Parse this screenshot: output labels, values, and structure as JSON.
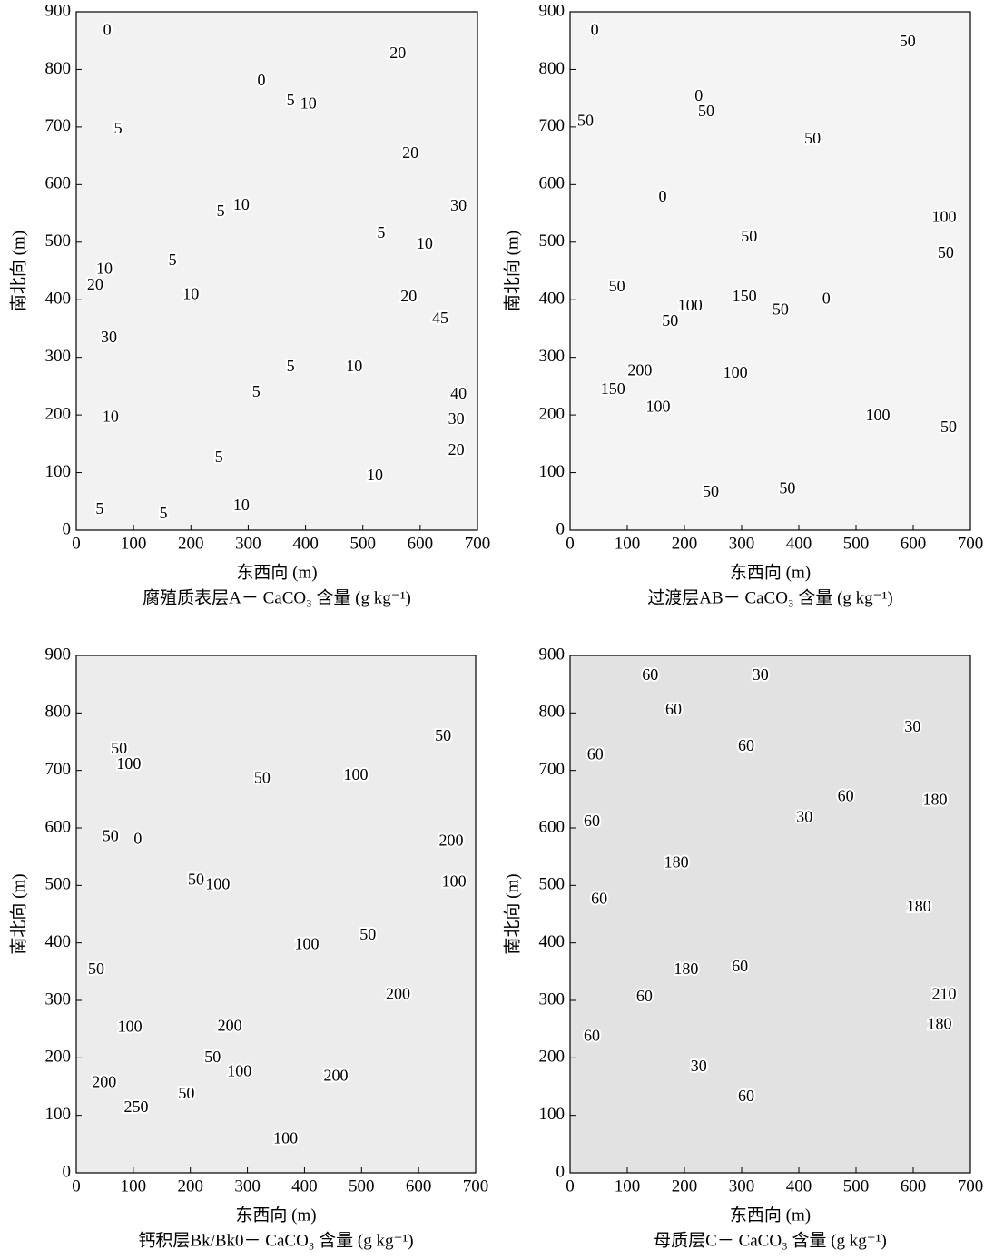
{
  "chart_data": [
    {
      "type": "contour",
      "xlabel": "东西向 (m)",
      "ylabel": "南北向 (m)",
      "caption": "腐殖质表层A－ CaCO₃ 含量 (g kg⁻¹)",
      "color": "#f2f2f2",
      "xlim": [
        0,
        700
      ],
      "ylim": [
        0,
        900
      ],
      "xticks": [
        0,
        100,
        200,
        300,
        400,
        500,
        600,
        700
      ],
      "yticks": [
        0,
        100,
        200,
        300,
        400,
        500,
        600,
        700,
        800,
        900
      ],
      "contour_labels": [
        {
          "x": 54,
          "y": 866,
          "value": 0
        },
        {
          "x": 323,
          "y": 779,
          "value": 0
        },
        {
          "x": 561,
          "y": 826,
          "value": 20
        },
        {
          "x": 73,
          "y": 695,
          "value": 5
        },
        {
          "x": 374,
          "y": 744,
          "value": 5
        },
        {
          "x": 405,
          "y": 739,
          "value": 10
        },
        {
          "x": 583,
          "y": 653,
          "value": 20
        },
        {
          "x": 667,
          "y": 561,
          "value": 30
        },
        {
          "x": 288,
          "y": 563,
          "value": 10
        },
        {
          "x": 252,
          "y": 552,
          "value": 5
        },
        {
          "x": 168,
          "y": 467,
          "value": 5
        },
        {
          "x": 200,
          "y": 408,
          "value": 10
        },
        {
          "x": 532,
          "y": 514,
          "value": 5
        },
        {
          "x": 608,
          "y": 495,
          "value": 10
        },
        {
          "x": 580,
          "y": 404,
          "value": 20
        },
        {
          "x": 635,
          "y": 366,
          "value": 45
        },
        {
          "x": 49,
          "y": 452,
          "value": 10
        },
        {
          "x": 33,
          "y": 424,
          "value": 20
        },
        {
          "x": 57,
          "y": 333,
          "value": 30
        },
        {
          "x": 374,
          "y": 282,
          "value": 5
        },
        {
          "x": 314,
          "y": 238,
          "value": 5
        },
        {
          "x": 485,
          "y": 282,
          "value": 10
        },
        {
          "x": 667,
          "y": 235,
          "value": 40
        },
        {
          "x": 663,
          "y": 191,
          "value": 30
        },
        {
          "x": 663,
          "y": 137,
          "value": 20
        },
        {
          "x": 60,
          "y": 195,
          "value": 10
        },
        {
          "x": 249,
          "y": 125,
          "value": 5
        },
        {
          "x": 521,
          "y": 93,
          "value": 10
        },
        {
          "x": 41,
          "y": 35,
          "value": 5
        },
        {
          "x": 152,
          "y": 27,
          "value": 5
        },
        {
          "x": 288,
          "y": 41,
          "value": 10
        }
      ]
    },
    {
      "type": "contour",
      "xlabel": "东西向 (m)",
      "ylabel": "南北向 (m)",
      "caption": "过渡层AB－ CaCO₃ 含量 (g kg⁻¹)",
      "color": "#f4f4f4",
      "xlim": [
        0,
        700
      ],
      "ylim": [
        0,
        900
      ],
      "xticks": [
        0,
        100,
        200,
        300,
        400,
        500,
        600,
        700
      ],
      "yticks": [
        0,
        100,
        200,
        300,
        400,
        500,
        600,
        700,
        800,
        900
      ],
      "contour_labels": [
        {
          "x": 43,
          "y": 866,
          "value": 0
        },
        {
          "x": 590,
          "y": 847,
          "value": 50
        },
        {
          "x": 225,
          "y": 752,
          "value": 0
        },
        {
          "x": 238,
          "y": 725,
          "value": 50
        },
        {
          "x": 27,
          "y": 709,
          "value": 50
        },
        {
          "x": 424,
          "y": 678,
          "value": 50
        },
        {
          "x": 162,
          "y": 577,
          "value": 0
        },
        {
          "x": 654,
          "y": 542,
          "value": 100
        },
        {
          "x": 313,
          "y": 508,
          "value": 50
        },
        {
          "x": 657,
          "y": 479,
          "value": 50
        },
        {
          "x": 82,
          "y": 421,
          "value": 50
        },
        {
          "x": 305,
          "y": 404,
          "value": 150
        },
        {
          "x": 448,
          "y": 400,
          "value": 0
        },
        {
          "x": 210,
          "y": 388,
          "value": 100
        },
        {
          "x": 175,
          "y": 361,
          "value": 50
        },
        {
          "x": 368,
          "y": 381,
          "value": 50
        },
        {
          "x": 122,
          "y": 275,
          "value": 200
        },
        {
          "x": 75,
          "y": 243,
          "value": 150
        },
        {
          "x": 289,
          "y": 271,
          "value": 100
        },
        {
          "x": 154,
          "y": 212,
          "value": 100
        },
        {
          "x": 538,
          "y": 197,
          "value": 100
        },
        {
          "x": 662,
          "y": 177,
          "value": 50
        },
        {
          "x": 246,
          "y": 65,
          "value": 50
        },
        {
          "x": 380,
          "y": 70,
          "value": 50
        }
      ]
    },
    {
      "type": "contour",
      "xlabel": "东西向 (m)",
      "ylabel": "南北向 (m)",
      "caption": "钙积层Bk/Bk0－ CaCO₃ 含量 (g kg⁻¹)",
      "color": "#ececec",
      "xlim": [
        0,
        700
      ],
      "ylim": [
        0,
        900
      ],
      "xticks": [
        0,
        100,
        200,
        300,
        400,
        500,
        600,
        700
      ],
      "yticks": [
        0,
        100,
        200,
        300,
        400,
        500,
        600,
        700,
        800,
        900
      ],
      "contour_labels": [
        {
          "x": 643,
          "y": 758,
          "value": 50
        },
        {
          "x": 75,
          "y": 736,
          "value": 50
        },
        {
          "x": 92,
          "y": 709,
          "value": 100
        },
        {
          "x": 326,
          "y": 685,
          "value": 50
        },
        {
          "x": 490,
          "y": 690,
          "value": 100
        },
        {
          "x": 108,
          "y": 579,
          "value": 0
        },
        {
          "x": 60,
          "y": 584,
          "value": 50
        },
        {
          "x": 657,
          "y": 576,
          "value": 200
        },
        {
          "x": 662,
          "y": 505,
          "value": 100
        },
        {
          "x": 210,
          "y": 508,
          "value": 50
        },
        {
          "x": 248,
          "y": 500,
          "value": 100
        },
        {
          "x": 511,
          "y": 412,
          "value": 50
        },
        {
          "x": 404,
          "y": 396,
          "value": 100
        },
        {
          "x": 35,
          "y": 352,
          "value": 50
        },
        {
          "x": 564,
          "y": 309,
          "value": 200
        },
        {
          "x": 94,
          "y": 252,
          "value": 100
        },
        {
          "x": 269,
          "y": 254,
          "value": 200
        },
        {
          "x": 239,
          "y": 199,
          "value": 50
        },
        {
          "x": 286,
          "y": 175,
          "value": 100
        },
        {
          "x": 455,
          "y": 167,
          "value": 200
        },
        {
          "x": 49,
          "y": 156,
          "value": 200
        },
        {
          "x": 105,
          "y": 112,
          "value": 250
        },
        {
          "x": 193,
          "y": 136,
          "value": 50
        },
        {
          "x": 367,
          "y": 58,
          "value": 100
        }
      ]
    },
    {
      "type": "contour",
      "xlabel": "东西向 (m)",
      "ylabel": "南北向 (m)",
      "caption": "母质层C－ CaCO₃ 含量 (g kg⁻¹)",
      "color": "#e2e2e2",
      "xlim": [
        0,
        700
      ],
      "ylim": [
        0,
        900
      ],
      "xticks": [
        0,
        100,
        200,
        300,
        400,
        500,
        600,
        700
      ],
      "yticks": [
        0,
        100,
        200,
        300,
        400,
        500,
        600,
        700,
        800,
        900
      ],
      "contour_labels": [
        {
          "x": 333,
          "y": 864,
          "value": 30
        },
        {
          "x": 140,
          "y": 864,
          "value": 60
        },
        {
          "x": 599,
          "y": 774,
          "value": 30
        },
        {
          "x": 181,
          "y": 804,
          "value": 60
        },
        {
          "x": 44,
          "y": 726,
          "value": 60
        },
        {
          "x": 308,
          "y": 741,
          "value": 60
        },
        {
          "x": 482,
          "y": 653,
          "value": 60
        },
        {
          "x": 38,
          "y": 610,
          "value": 60
        },
        {
          "x": 410,
          "y": 617,
          "value": 30
        },
        {
          "x": 638,
          "y": 647,
          "value": 180
        },
        {
          "x": 186,
          "y": 538,
          "value": 180
        },
        {
          "x": 51,
          "y": 475,
          "value": 60
        },
        {
          "x": 610,
          "y": 461,
          "value": 180
        },
        {
          "x": 297,
          "y": 357,
          "value": 60
        },
        {
          "x": 203,
          "y": 352,
          "value": 180
        },
        {
          "x": 130,
          "y": 305,
          "value": 60
        },
        {
          "x": 654,
          "y": 309,
          "value": 210
        },
        {
          "x": 646,
          "y": 257,
          "value": 180
        },
        {
          "x": 38,
          "y": 236,
          "value": 60
        },
        {
          "x": 225,
          "y": 183,
          "value": 30
        },
        {
          "x": 308,
          "y": 131,
          "value": 60
        }
      ]
    }
  ]
}
